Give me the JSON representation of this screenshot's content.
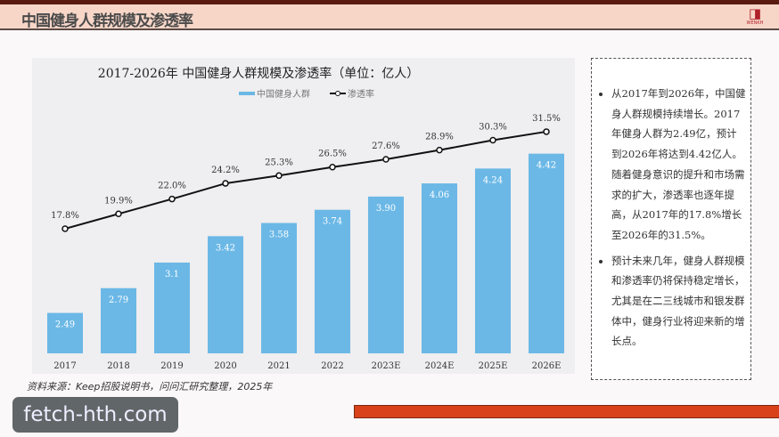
{
  "header": {
    "title": "中国健身人群规模及渗透率",
    "logo_text": "WENKH"
  },
  "chart_data": {
    "type": "bar+line",
    "title": "2017-2026年  中国健身人群规模及渗透率（单位：亿人）",
    "categories": [
      "2017",
      "2018",
      "2019",
      "2020",
      "2021",
      "2022",
      "2023E",
      "2024E",
      "2025E",
      "2026E"
    ],
    "series": [
      {
        "name": "中国健身人群",
        "type": "bar",
        "color": "#6bb8e6",
        "values": [
          2.49,
          2.79,
          3.1,
          3.42,
          3.58,
          3.74,
          3.9,
          4.06,
          4.24,
          4.42
        ],
        "labels": [
          "2.49",
          "2.79",
          "3.1",
          "3.42",
          "3.58",
          "3.74",
          "3.90",
          "4.06",
          "4.24",
          "4.42"
        ]
      },
      {
        "name": "渗透率",
        "type": "line",
        "color": "#111111",
        "values": [
          17.8,
          19.9,
          22.0,
          24.2,
          25.3,
          26.5,
          27.6,
          28.9,
          30.3,
          31.5
        ],
        "labels": [
          "17.8%",
          "19.9%",
          "22.0%",
          "24.2%",
          "25.3%",
          "26.5%",
          "27.6%",
          "28.9%",
          "30.3%",
          "31.5%"
        ]
      }
    ],
    "legend": "top-center",
    "grid": false
  },
  "side": {
    "bullets": [
      "从2017年到2026年，中国健身人群规模持续增长。2017年健身人群为2.49亿，预计到2026年将达到4.42亿人。随着健身意识的提升和市场需求的扩大，渗透率也逐年提高，从2017年的17.8%增长至2026年的31.5%。",
      "预计未来几年，健身人群规模和渗透率仍将保持稳定增长，尤其是在二三线城市和银发群体中，健身行业将迎来新的增长点。"
    ]
  },
  "source": "资料来源：Keep招股说明书，问问汇研究整理，2025年",
  "watermark": "fetch-hth.com"
}
